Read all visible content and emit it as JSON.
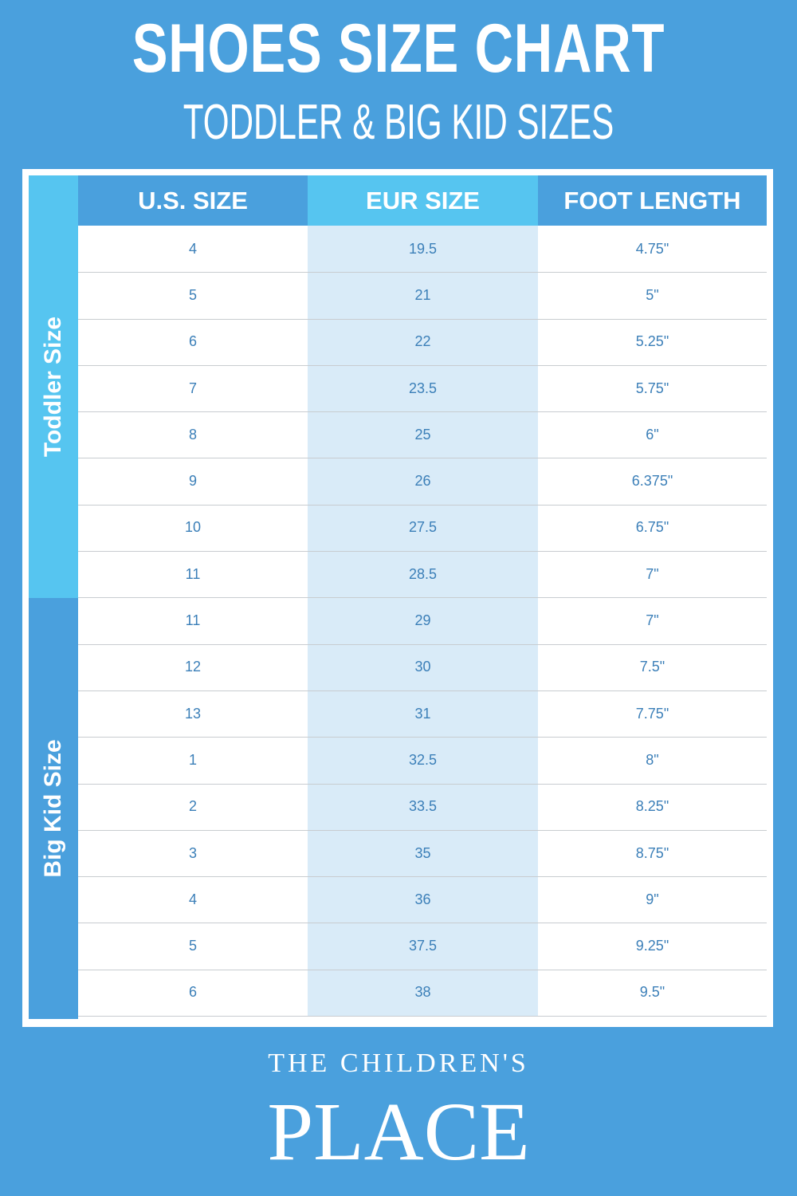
{
  "header": {
    "title": "SHOES SIZE CHART",
    "subtitle": "TODDLER & BIG KID SIZES"
  },
  "colors": {
    "background": "#4aa0dd",
    "accent_light": "#56c5f0",
    "eur_column": "#d9ebf8",
    "cell_text": "#3b7fb8"
  },
  "table": {
    "columns": [
      "U.S. SIZE",
      "EUR SIZE",
      "FOOT LENGTH"
    ],
    "groups": [
      {
        "label": "Toddler Size",
        "rows": [
          [
            "4",
            "19.5",
            "4.75\""
          ],
          [
            "5",
            "21",
            "5\""
          ],
          [
            "6",
            "22",
            "5.25\""
          ],
          [
            "7",
            "23.5",
            "5.75\""
          ],
          [
            "8",
            "25",
            "6\""
          ],
          [
            "9",
            "26",
            "6.375\""
          ],
          [
            "10",
            "27.5",
            "6.75\""
          ],
          [
            "11",
            "28.5",
            "7\""
          ]
        ]
      },
      {
        "label": "Big Kid Size",
        "rows": [
          [
            "11",
            "29",
            "7\""
          ],
          [
            "12",
            "30",
            "7.5\""
          ],
          [
            "13",
            "31",
            "7.75\""
          ],
          [
            "1",
            "32.5",
            "8\""
          ],
          [
            "2",
            "33.5",
            "8.25\""
          ],
          [
            "3",
            "35",
            "8.75\""
          ],
          [
            "4",
            "36",
            "9\""
          ],
          [
            "5",
            "37.5",
            "9.25\""
          ],
          [
            "6",
            "38",
            "9.5\""
          ]
        ]
      }
    ]
  },
  "logo": {
    "line1": "THE CHILDREN'S",
    "line2": "PLACE"
  }
}
